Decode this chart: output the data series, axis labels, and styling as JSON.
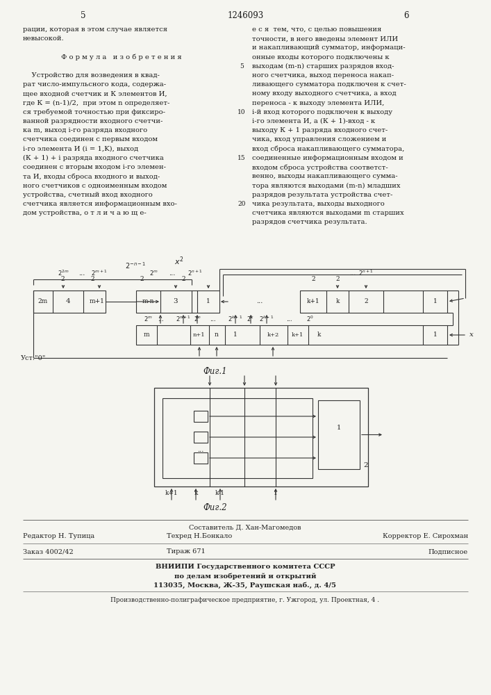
{
  "page_number_left": "5",
  "page_number_center": "1246093",
  "page_number_right": "6",
  "bg_color": "#f5f5f0",
  "text_color": "#1a1a1a",
  "left_col_text": [
    "рации, которая в этом случае является",
    "невысокой.",
    "",
    "Ф о р м у л а   и з о б р е т е н и я",
    "",
    "    Устройство для возведения в квад-",
    "рат число-импульсного кода, содержа-",
    "щее входной счетчик и К элементов И,",
    "где К = \\frac{n-1}{2},  при этом n определяет-",
    "ся требуемой точностью при фиксиро-",
    "ванной разрядности входного счетчи-",
    "ка m, выход i-го разряда входного",
    "счетчика соединен с первым входом",
    "i-го элемента И (i = 1,K), выход",
    "(К + 1) + i разряда входного счетчика",
    "соединен с вторым входом i-го элемен-",
    "та И, входы сброса входного и выход-",
    "ного счетчиков с одноименным входом",
    "устройства, счетный вход входного",
    "счетчика является информационным вхо-",
    "дом устройства, о т л и ч а ю щ е-"
  ],
  "left_col_text_plain": [
    "рации, которая в этом случае является",
    "невысокой.",
    "",
    "Ф о р м у л а   и з о б р е т е н и я",
    "",
    "    Устройство для возведения в квад-",
    "рат число-импульсного кода, содержа-",
    "щее входной счетчик и К элементов И,",
    "где К = (n-1)/2,  при этом n определяет-",
    "ся требуемой точностью при фиксиро-",
    "ванной разрядности входного счетчи-",
    "ка m, выход i-го разряда входного",
    "счетчика соединен с первым входом",
    "i-го элемента И (i = 1,K), выход",
    "(К + 1) + i разряда входного счетчика",
    "соединен с вторым входом i-го элемен-",
    "та И, входы сброса входного и выход-",
    "ного счетчиков с одноименным входом",
    "устройства, счетный вход входного",
    "счетчика является информационным вхо-",
    "дом устройства, о т л и ч а ю щ е-"
  ],
  "right_col_text": [
    "е с я  тем, что, с целью повышения",
    "точности, в него введены элемент ИЛИ",
    "и накапливающий сумматор, информаци-",
    "онные входы которого подключены к",
    "выходам (m-n) старших разрядов вход-",
    "ного счетчика, выход переноса накап-",
    "ливающего сумматора подключен к счет-",
    "ному входу выходного счетчика, а вход",
    "переноса - к выходу элемента ИЛИ,",
    "i-й вход которого подключен к выходу",
    "i-го элемента И, а (К + 1)-вход - к",
    "выходу К + 1 разряда входного счет-",
    "чика, вход управления сложением и",
    "вход сброса накапливающего сумматора,",
    "соединенные информационным входом и",
    "входом сброса устройства соответст-",
    "венно, выходы накапливающего сумма-",
    "тора являются выходами (m-n) младших",
    "разрядов результата устройства счет-",
    "чика результата, выходы выходного",
    "счетчика являются выходами m старших",
    "разрядов счетчика результата."
  ],
  "line_numbers_right": [
    "5",
    "10",
    "15",
    "20"
  ],
  "fig1_label": "Фиг.1",
  "fig2_label": "Фиг.2",
  "footer_line1_left": "Редактор Н. Тупица",
  "footer_line1_center": "Составитель Д. Хан-Магомедов",
  "footer_line1_right": "Корректор Е. Сирохман",
  "footer_line2_left": "Техред Н.Бонкало",
  "footer_order": "Заказ 4002/42",
  "footer_tirazh": "Тираж 671",
  "footer_podpis": "Подписное",
  "footer_vnipi": "ВНИИПИ Государственного комитета СССР",
  "footer_vnipi2": "по делам изобретений и открытий",
  "footer_addr": "113035, Москва, Ж-35, Раушская наб., д. 4/5",
  "footer_prod": "Производственно-полиграфическое предприятие, г. Ужгород, ул. Проектная, 4 ."
}
